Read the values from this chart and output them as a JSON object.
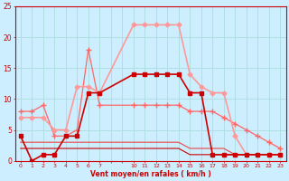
{
  "xlabel": "Vent moyen/en rafales ( km/h )",
  "bg_color": "#cceeff",
  "grid_color": "#aadddd",
  "ylim": [
    0,
    25
  ],
  "xlim": [
    -0.5,
    23.5
  ],
  "yticks": [
    0,
    5,
    10,
    15,
    20,
    25
  ],
  "xtick_labels": [
    "0",
    "1",
    "2",
    "3",
    "4",
    "5",
    "6",
    "7",
    "",
    "",
    "10",
    "11",
    "12",
    "13",
    "14",
    "15",
    "16",
    "17",
    "18",
    "19",
    "20",
    "21",
    "22",
    "23"
  ],
  "xtick_positions": [
    0,
    1,
    2,
    3,
    4,
    5,
    6,
    7,
    8,
    9,
    10,
    11,
    12,
    13,
    14,
    15,
    16,
    17,
    18,
    19,
    20,
    21,
    22,
    23
  ],
  "line_dark_red": {
    "x": [
      0,
      1,
      2,
      3,
      4,
      5,
      6,
      7,
      10,
      11,
      12,
      13,
      14,
      15,
      16,
      17,
      18,
      19,
      20,
      21,
      22,
      23
    ],
    "y": [
      4,
      0,
      1,
      1,
      4,
      4,
      11,
      11,
      14,
      14,
      14,
      14,
      14,
      11,
      11,
      1,
      1,
      1,
      1,
      1,
      1,
      1
    ],
    "color": "#cc0000",
    "lw": 1.2,
    "marker": "s",
    "ms": 2.5,
    "zorder": 4
  },
  "line_light_pink": {
    "x": [
      0,
      1,
      2,
      3,
      4,
      5,
      6,
      7,
      10,
      11,
      12,
      13,
      14,
      15,
      16,
      17,
      18,
      19,
      20,
      21,
      22,
      23
    ],
    "y": [
      7,
      7,
      7,
      5,
      5,
      12,
      12,
      11,
      22,
      22,
      22,
      22,
      22,
      14,
      12,
      11,
      11,
      4,
      1,
      1,
      1,
      1
    ],
    "color": "#ff9999",
    "lw": 1.2,
    "marker": "D",
    "ms": 2.5,
    "zorder": 3
  },
  "line_med_red": {
    "x": [
      0,
      1,
      2,
      3,
      4,
      5,
      6,
      7,
      10,
      11,
      12,
      13,
      14,
      15,
      16,
      17,
      18,
      19,
      20,
      21,
      22,
      23
    ],
    "y": [
      8,
      8,
      9,
      4,
      4,
      5,
      18,
      9,
      9,
      9,
      9,
      9,
      9,
      8,
      8,
      8,
      7,
      6,
      5,
      4,
      3,
      2
    ],
    "color": "#ff6666",
    "lw": 0.9,
    "marker": "+",
    "ms": 4,
    "zorder": 2
  },
  "line_flat1": {
    "x": [
      0,
      1,
      2,
      3,
      4,
      5,
      6,
      7,
      10,
      11,
      12,
      13,
      14,
      15,
      16,
      17,
      18,
      19,
      20,
      21,
      22,
      23
    ],
    "y": [
      3,
      3,
      3,
      3,
      3,
      3,
      3,
      3,
      3,
      3,
      3,
      3,
      3,
      2,
      2,
      2,
      2,
      1,
      1,
      1,
      1,
      1
    ],
    "color": "#ee4444",
    "lw": 0.8,
    "marker": null,
    "ms": 0,
    "zorder": 2
  },
  "line_flat2": {
    "x": [
      0,
      1,
      2,
      3,
      4,
      5,
      6,
      7,
      10,
      11,
      12,
      13,
      14,
      15,
      16,
      17,
      18,
      19,
      20,
      21,
      22,
      23
    ],
    "y": [
      2,
      2,
      2,
      2,
      2,
      2,
      2,
      2,
      2,
      2,
      2,
      2,
      2,
      1,
      1,
      1,
      1,
      1,
      1,
      1,
      1,
      1
    ],
    "color": "#cc0000",
    "lw": 0.8,
    "marker": null,
    "ms": 0,
    "zorder": 2
  }
}
